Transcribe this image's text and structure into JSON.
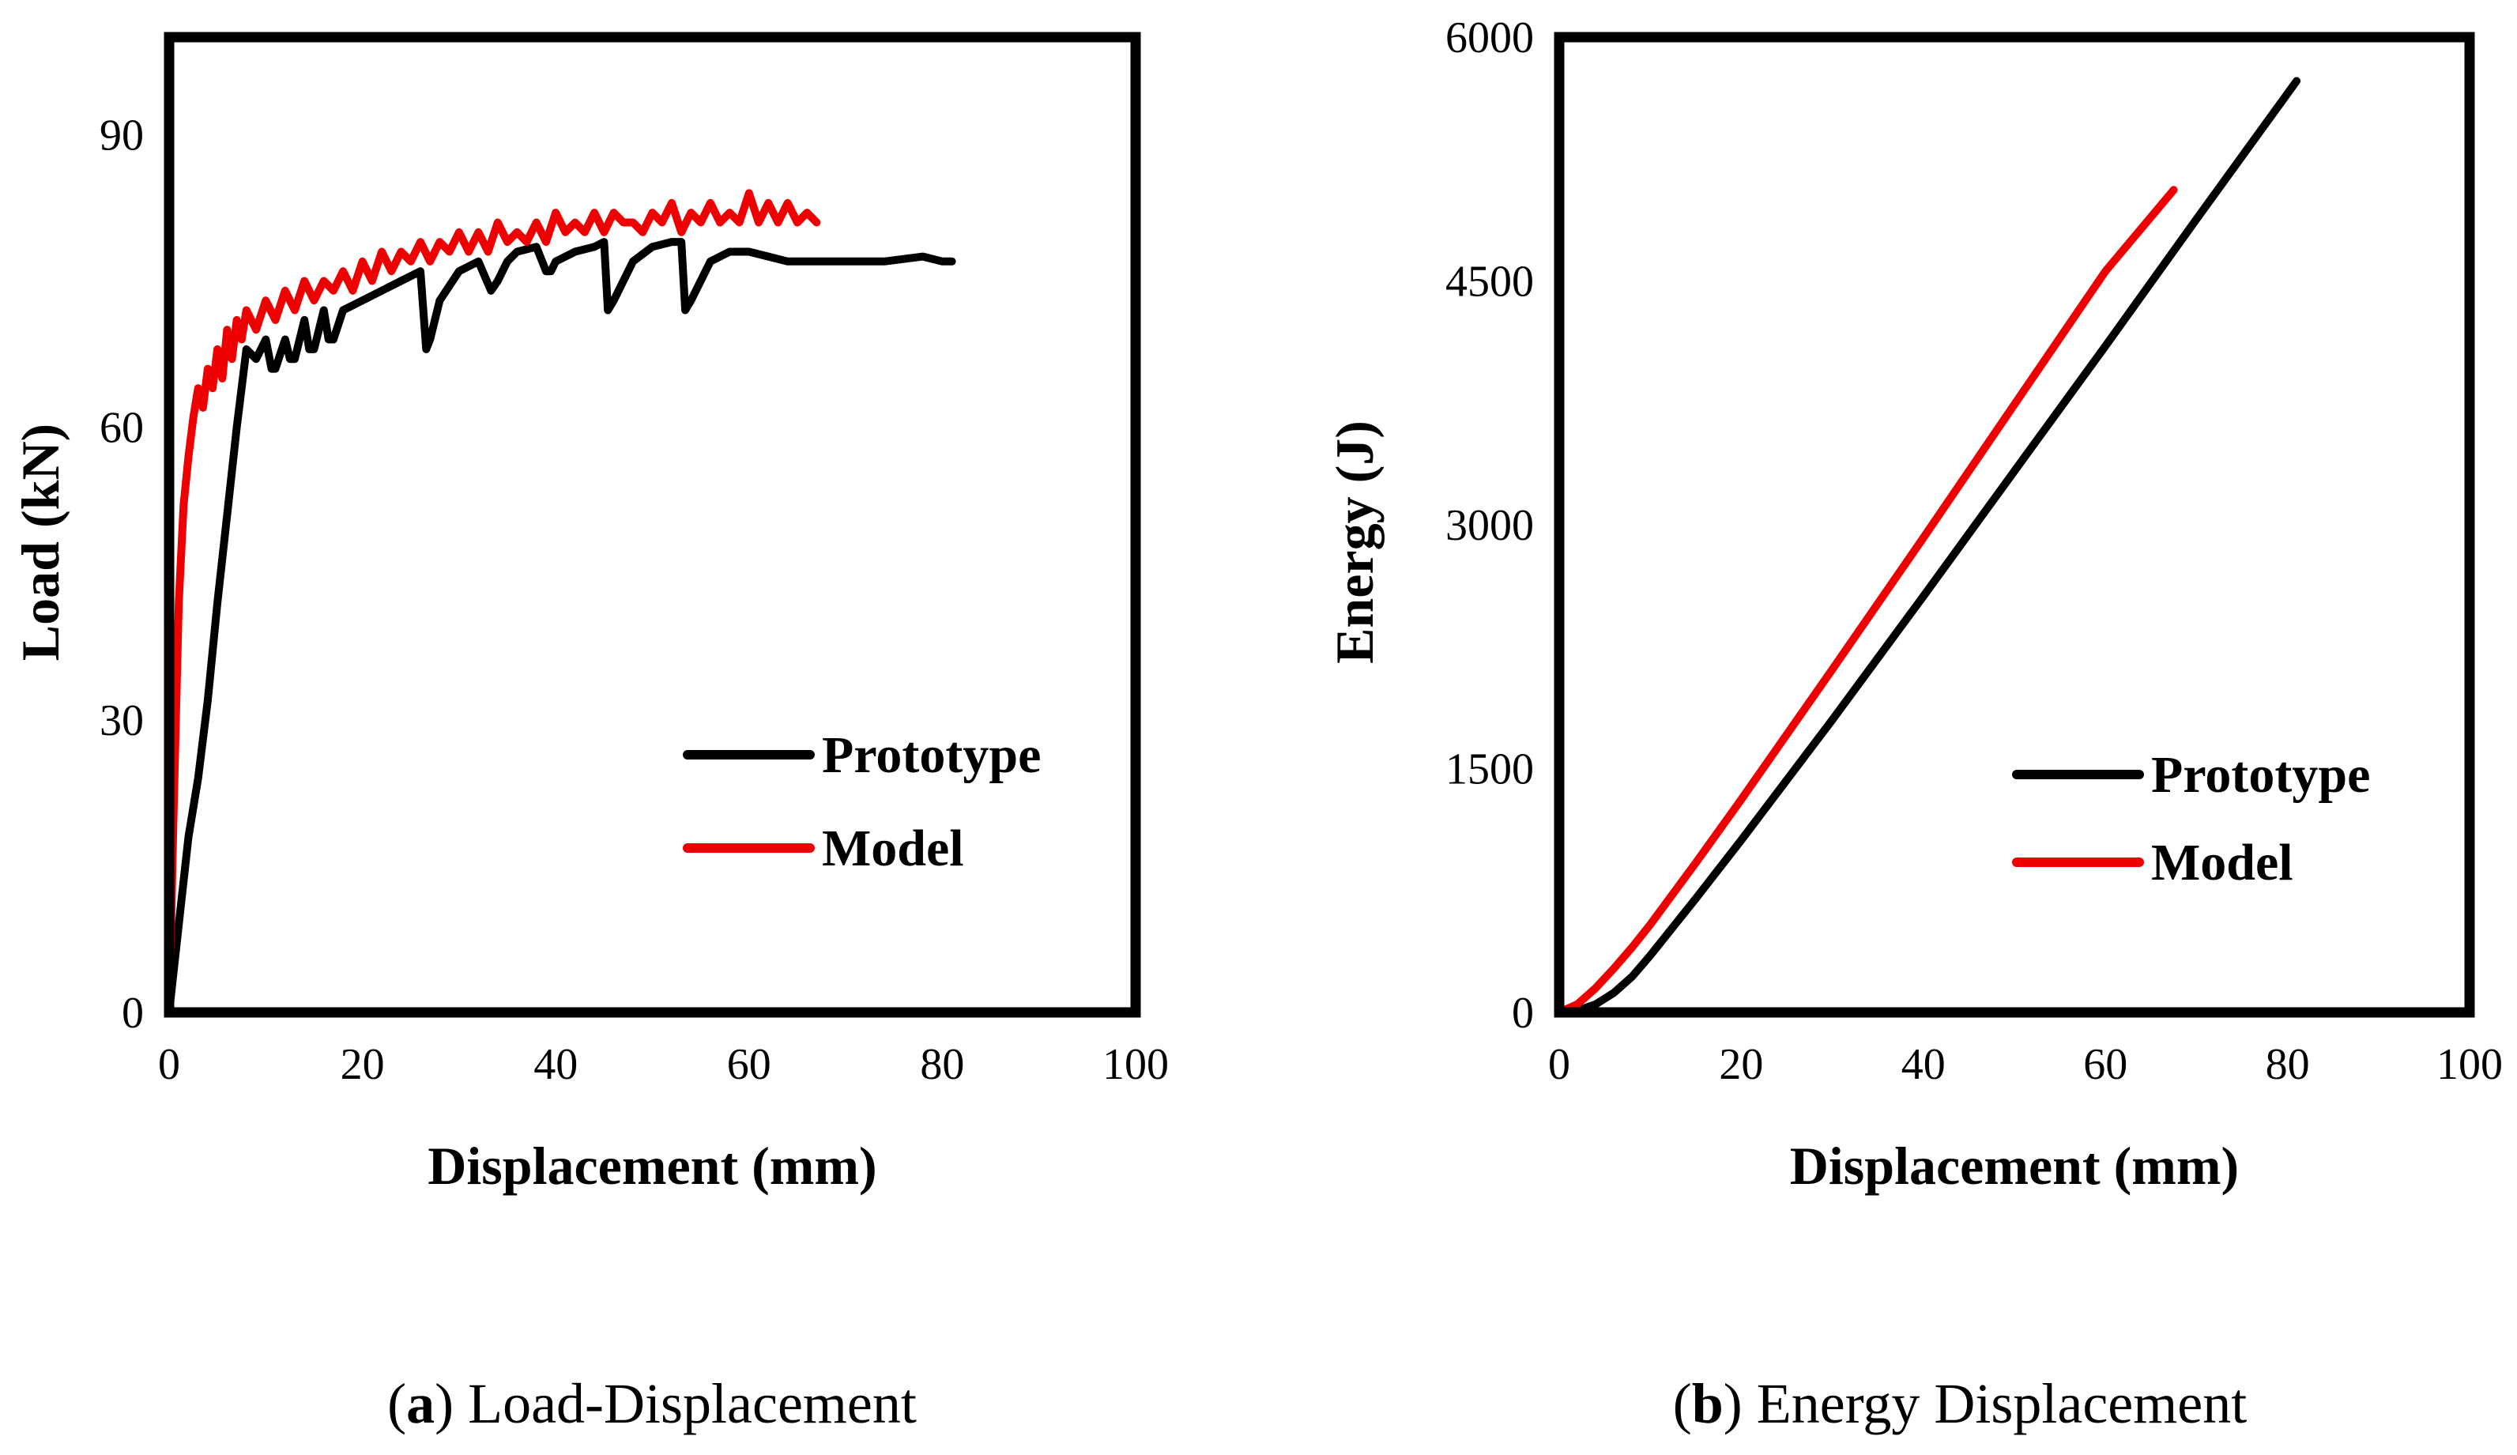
{
  "chart_data": [
    {
      "type": "line",
      "panel_id": "a",
      "xlabel": "Displacement (mm)",
      "ylabel": "Load (kN)",
      "xlim": [
        0,
        100
      ],
      "ylim": [
        0,
        100
      ],
      "xticks": [
        0,
        20,
        40,
        60,
        80,
        100
      ],
      "yticks": [
        0,
        30,
        60,
        90
      ],
      "legend_position": "center-right",
      "caption": {
        "letter": "a",
        "text": "Load-Displacement"
      },
      "series": [
        {
          "name": "Prototype",
          "color": "#000000",
          "x": [
            0,
            1,
            2,
            3,
            4,
            5,
            6,
            7,
            8,
            9,
            10,
            10.6,
            11,
            12,
            12.5,
            13,
            14,
            14.5,
            15,
            16,
            16.5,
            17,
            18,
            20,
            22,
            24,
            26,
            26.6,
            27,
            28,
            30,
            32,
            33.3,
            34,
            35,
            36,
            38,
            39,
            39.5,
            40,
            42,
            44,
            45,
            45.4,
            46,
            48,
            50,
            52,
            53,
            53.4,
            54,
            56,
            58,
            60,
            62,
            64,
            66,
            70,
            74,
            78,
            80,
            81
          ],
          "values": [
            0,
            9,
            18,
            24,
            32,
            42,
            51,
            60,
            68,
            67,
            69,
            66,
            66,
            69,
            67,
            67,
            71,
            68,
            68,
            72,
            69,
            69,
            72,
            73,
            74,
            75,
            76,
            68,
            69,
            73,
            76,
            77,
            74,
            75,
            77,
            78,
            78.5,
            76,
            76,
            77,
            78,
            78.5,
            79,
            72,
            73,
            77,
            78.5,
            79,
            79,
            72,
            73,
            77,
            78,
            78,
            77.5,
            77,
            77,
            77,
            77,
            77.5,
            77,
            77
          ]
        },
        {
          "name": "Model",
          "color": "#ee0000",
          "x": [
            0,
            0.5,
            1,
            1.5,
            2,
            2.5,
            3,
            3.5,
            4,
            4.5,
            5,
            5.5,
            6,
            6.5,
            7,
            7.5,
            8,
            9,
            10,
            11,
            12,
            13,
            14,
            15,
            16,
            17,
            18,
            19,
            20,
            21,
            22,
            23,
            24,
            25,
            26,
            27,
            28,
            29,
            30,
            31,
            32,
            33,
            34,
            35,
            36,
            37,
            38,
            39,
            40,
            41,
            42,
            43,
            44,
            45,
            46,
            47,
            48,
            49,
            50,
            51,
            52,
            53,
            54,
            55,
            56,
            57,
            58,
            59,
            60,
            61,
            62,
            63,
            64,
            65,
            66,
            67
          ],
          "values": [
            0,
            22,
            42,
            52,
            57,
            61,
            64,
            62,
            66,
            64,
            68,
            65,
            70,
            67,
            71,
            69,
            72,
            70,
            73,
            71,
            74,
            72,
            75,
            73,
            75,
            74,
            76,
            74,
            77,
            75,
            78,
            76,
            78,
            77,
            79,
            77,
            79,
            78,
            80,
            78,
            80,
            78,
            81,
            79,
            80,
            79,
            81,
            79,
            82,
            80,
            81,
            80,
            82,
            80,
            82,
            81,
            81,
            80,
            82,
            81,
            83,
            80,
            82,
            81,
            83,
            81,
            82,
            81,
            84,
            81,
            83,
            81,
            83,
            81,
            82,
            81
          ]
        }
      ]
    },
    {
      "type": "line",
      "panel_id": "b",
      "xlabel": "Displacement (mm)",
      "ylabel": "Energy (J)",
      "xlim": [
        0,
        100
      ],
      "ylim": [
        0,
        6000
      ],
      "xticks": [
        0,
        20,
        40,
        60,
        80,
        100
      ],
      "yticks": [
        0,
        1500,
        3000,
        4500,
        6000
      ],
      "legend_position": "center-right",
      "caption": {
        "letter": "b",
        "text": "Energy Displacement"
      },
      "series": [
        {
          "name": "Prototype",
          "color": "#000000",
          "x": [
            0,
            2,
            4,
            6,
            8,
            10,
            15,
            20,
            30,
            40,
            50,
            60,
            70,
            81
          ],
          "values": [
            0,
            10,
            50,
            120,
            220,
            350,
            700,
            1060,
            1800,
            2560,
            3330,
            4100,
            4880,
            5730
          ]
        },
        {
          "name": "Model",
          "color": "#ee0000",
          "x": [
            0,
            2,
            4,
            6,
            8,
            10,
            15,
            20,
            30,
            40,
            50,
            60,
            67.5
          ],
          "values": [
            0,
            50,
            150,
            270,
            400,
            540,
            920,
            1310,
            2110,
            2920,
            3740,
            4560,
            5060
          ]
        }
      ]
    }
  ]
}
